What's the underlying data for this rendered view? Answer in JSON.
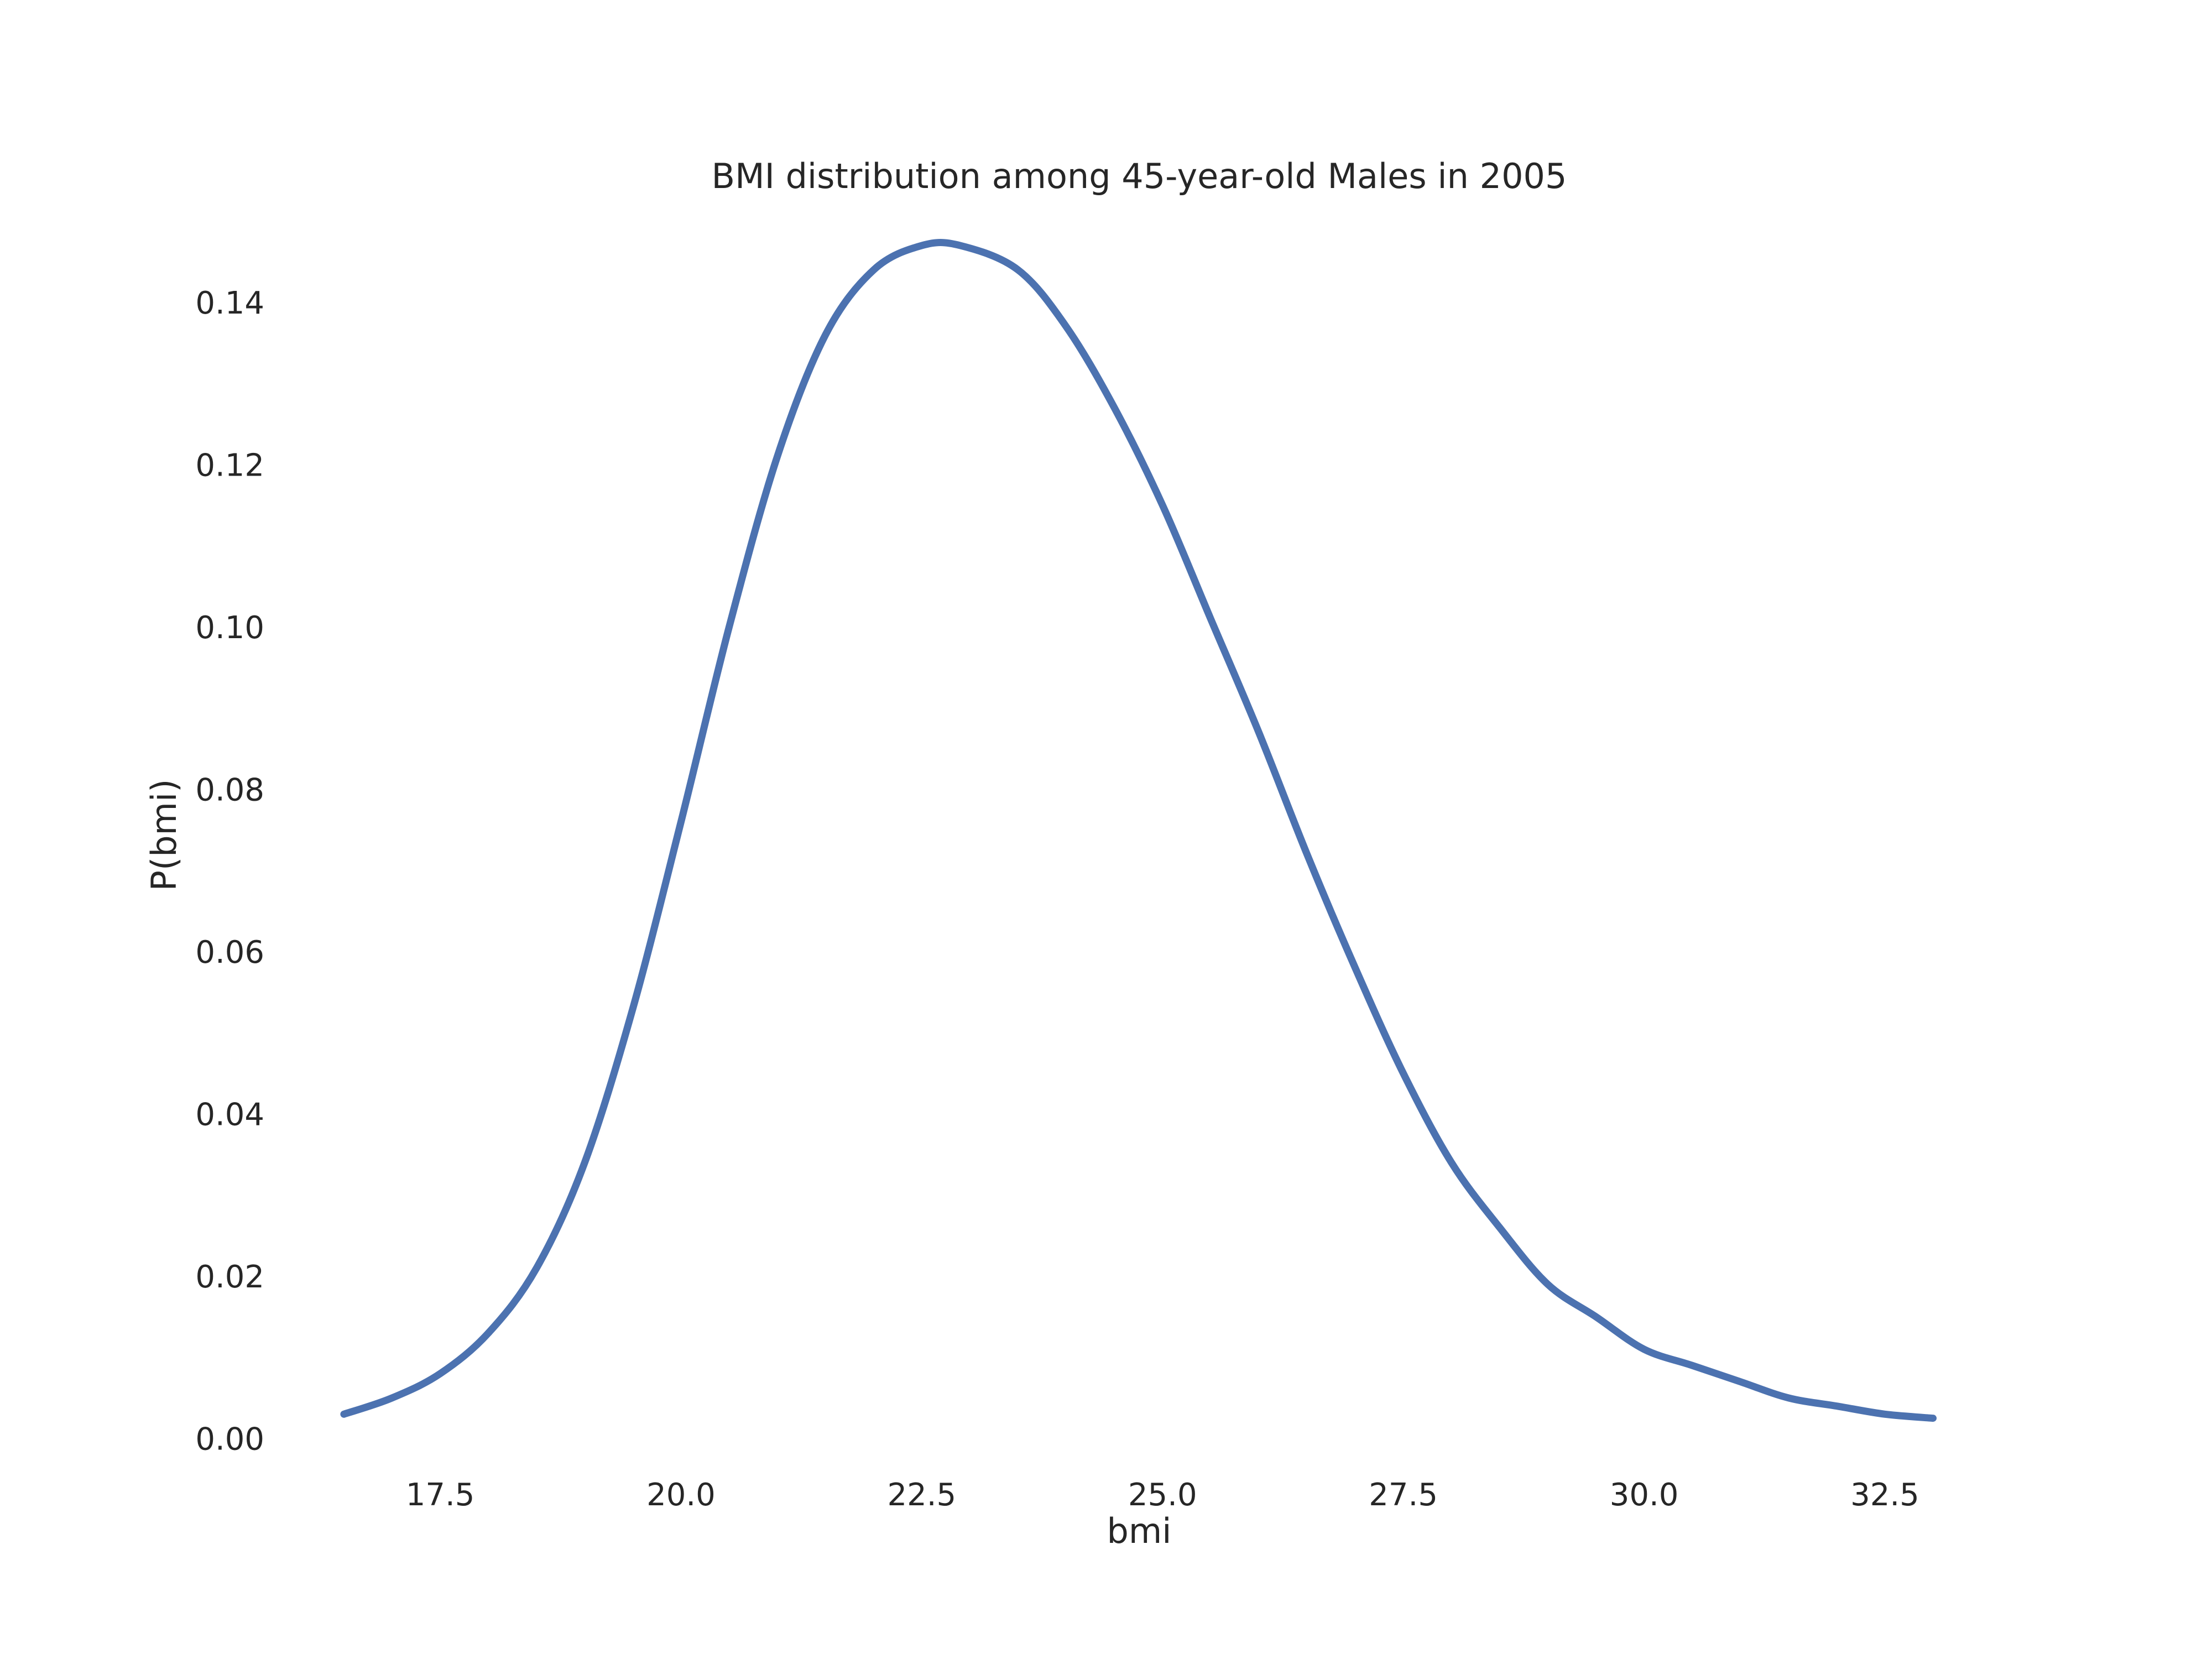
{
  "chart_data": {
    "type": "line",
    "title": "BMI distribution among 45-year-old Males in 2005",
    "xlabel": "bmi",
    "ylabel": "P(bmi)",
    "xlim": [
      15.8,
      33.6
    ],
    "ylim": [
      -0.004,
      0.15
    ],
    "x_ticks": [
      17.5,
      20.0,
      22.5,
      25.0,
      27.5,
      30.0,
      32.5
    ],
    "y_ticks": [
      0.0,
      0.02,
      0.04,
      0.06,
      0.08,
      0.1,
      0.12,
      0.14
    ],
    "x_tick_labels": [
      "17.5",
      "20.0",
      "22.5",
      "25.0",
      "27.5",
      "30.0",
      "32.5"
    ],
    "y_tick_labels": [
      "0.00",
      "0.02",
      "0.04",
      "0.06",
      "0.08",
      "0.10",
      "0.12",
      "0.14"
    ],
    "grid": false,
    "colors": {
      "line": "#4c72b0",
      "text": "#262626",
      "background": "#ffffff"
    },
    "series": [
      {
        "color": "#4c72b0",
        "x": [
          16.5,
          17.0,
          17.5,
          18.0,
          18.5,
          19.0,
          19.5,
          20.0,
          20.5,
          21.0,
          21.5,
          22.0,
          22.5,
          22.9,
          23.5,
          24.0,
          24.5,
          25.0,
          25.5,
          26.0,
          26.5,
          27.0,
          27.5,
          28.0,
          28.5,
          29.0,
          29.5,
          30.0,
          30.5,
          31.0,
          31.5,
          32.0,
          32.5,
          33.0
        ],
        "y": [
          0.003,
          0.005,
          0.008,
          0.013,
          0.021,
          0.034,
          0.053,
          0.076,
          0.1,
          0.121,
          0.136,
          0.144,
          0.147,
          0.147,
          0.144,
          0.137,
          0.127,
          0.115,
          0.101,
          0.087,
          0.072,
          0.058,
          0.045,
          0.034,
          0.026,
          0.019,
          0.015,
          0.011,
          0.009,
          0.007,
          0.005,
          0.004,
          0.003,
          0.0025
        ]
      }
    ]
  }
}
